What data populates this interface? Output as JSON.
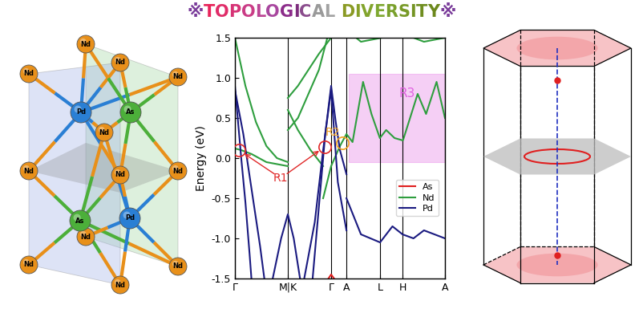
{
  "title": "※TOPOLOGICAL DIVERSITY※",
  "title_colors": [
    "#7a3c9a",
    "#e8245a",
    "#e02c68",
    "#d63476",
    "#ca3c86",
    "#bc4494",
    "#a8469e",
    "#8c2c8a",
    "#7e2e7e",
    "#8a4c8c",
    "#9a9a9a",
    "#a2a2a2",
    "#ffffff",
    "#8a9a24",
    "#86a028",
    "#82a42c",
    "#7ea830",
    "#7aa02c",
    "#789a28",
    "#749424",
    "#708e20",
    "#6c881c",
    "#7a3c9a"
  ],
  "crystal": {
    "elements": {
      "Nd": "#e8901a",
      "Pd": "#2a7fd4",
      "As": "#4caf3a"
    },
    "atoms": [
      "Nd",
      "Nd",
      "Nd",
      "Nd",
      "Nd",
      "Nd",
      "Nd",
      "Nd",
      "Nd",
      "Nd",
      "Nd",
      "Nd",
      "Pd",
      "As",
      "As",
      "Pd"
    ]
  },
  "chart_data": {
    "type": "line",
    "ylabel": "Energy (eV)",
    "xlim": [
      0,
      1.0
    ],
    "ylim": [
      -1.5,
      1.5
    ],
    "xticks": [
      {
        "value": 0,
        "label": "Γ"
      },
      {
        "value": 0.252,
        "label": "M|K"
      },
      {
        "value": 0.458,
        "label": "Γ"
      },
      {
        "value": 0.531,
        "label": "A"
      },
      {
        "value": 0.691,
        "label": "L"
      },
      {
        "value": 0.798,
        "label": "H"
      },
      {
        "value": 1.0,
        "label": "A"
      }
    ],
    "yticks": [
      {
        "value": -1.5,
        "label": "-1.5"
      },
      {
        "value": -1.0,
        "label": "-1.0"
      },
      {
        "value": -0.5,
        "label": "-0.5"
      },
      {
        "value": 0.0,
        "label": "0.0"
      },
      {
        "value": 0.5,
        "label": "0.5"
      },
      {
        "value": 1.0,
        "label": "1.0"
      },
      {
        "value": 1.5,
        "label": "1.5"
      }
    ],
    "grid": "x",
    "legend": "lower right",
    "series": [
      {
        "name": "As",
        "color": "#e02020",
        "bands": [
          {
            "x": [
              0.42,
              0.458,
              0.5
            ],
            "values": [
              -1.6,
              -1.45,
              -1.6
            ]
          }
        ]
      },
      {
        "name": "Nd",
        "color": "#2e9e3e",
        "bands": [
          {
            "x": [
              0,
              0.05,
              0.1,
              0.15,
              0.2,
              0.252
            ],
            "values": [
              1.5,
              0.9,
              0.45,
              0.15,
              0.0,
              -0.05
            ]
          },
          {
            "x": [
              0,
              0.03,
              0.08,
              0.15,
              0.252
            ],
            "values": [
              0.12,
              0.1,
              0.05,
              -0.05,
              -0.1
            ]
          },
          {
            "x": [
              0.252,
              0.3,
              0.35,
              0.4,
              0.458
            ],
            "values": [
              0.75,
              0.9,
              1.1,
              1.3,
              1.5
            ]
          },
          {
            "x": [
              0.252,
              0.3,
              0.35,
              0.4,
              0.44
            ],
            "values": [
              0.35,
              0.5,
              0.8,
              1.1,
              1.5
            ]
          },
          {
            "x": [
              0.252,
              0.3,
              0.36,
              0.42
            ],
            "values": [
              0.6,
              0.35,
              0.1,
              -0.1
            ]
          },
          {
            "x": [
              0.42,
              0.458,
              0.5,
              0.531,
              0.56,
              0.61,
              0.65,
              0.69,
              0.72,
              0.76,
              0.8,
              0.87,
              0.91,
              0.96,
              1.0
            ],
            "values": [
              -0.5,
              -0.1,
              0.15,
              0.3,
              0.2,
              0.95,
              0.55,
              0.25,
              0.35,
              0.25,
              0.22,
              0.8,
              0.55,
              0.95,
              0.5
            ]
          },
          {
            "x": [
              0.531,
              0.6,
              0.7,
              0.8,
              0.9,
              1.0
            ],
            "values": [
              1.6,
              1.45,
              1.5,
              1.55,
              1.45,
              1.5
            ]
          }
        ]
      },
      {
        "name": "Pd",
        "color": "#1a1a80",
        "bands": [
          {
            "x": [
              0,
              0.015,
              0.03,
              0.05,
              0.07,
              0.08
            ],
            "values": [
              0.9,
              0.45,
              0.0,
              -0.55,
              -1.2,
              -1.55
            ]
          },
          {
            "x": [
              0,
              0.04,
              0.08,
              0.12,
              0.14
            ],
            "values": [
              0.85,
              0.3,
              -0.4,
              -1.1,
              -1.5
            ]
          },
          {
            "x": [
              0.37,
              0.4,
              0.43,
              0.458,
              0.48,
              0.5,
              0.531
            ],
            "values": [
              -1.5,
              -0.6,
              0.3,
              0.9,
              0.45,
              0.1,
              -0.2
            ]
          },
          {
            "x": [
              0.33,
              0.38,
              0.42,
              0.458,
              0.49,
              0.531
            ],
            "values": [
              -1.5,
              -0.8,
              0.1,
              0.85,
              -0.3,
              -0.9
            ]
          },
          {
            "x": [
              0.531,
              0.6,
              0.691,
              0.75,
              0.798,
              0.85,
              0.9,
              1.0
            ],
            "values": [
              -0.5,
              -0.95,
              -1.05,
              -0.85,
              -0.95,
              -1.0,
              -0.9,
              -1.0
            ]
          },
          {
            "x": [
              0.18,
              0.22,
              0.252,
              0.28,
              0.31
            ],
            "values": [
              -1.5,
              -1.0,
              -0.7,
              -1.0,
              -1.5
            ]
          }
        ]
      }
    ],
    "annotations": [
      {
        "text": "R1",
        "color": "#e02828",
        "x": 0.218,
        "y": -0.25,
        "arrow": true,
        "targets": [
          [
            0.019,
            0.1
          ],
          [
            0.427,
            0.14
          ]
        ]
      },
      {
        "text": "R2",
        "color": "#f0a020",
        "x": 0.466,
        "y": 0.32,
        "arrow": false,
        "targets": [
          [
            0.511,
            0.19
          ]
        ]
      }
    ],
    "regions": [
      {
        "text": "R3",
        "color": "#e060e0",
        "x": [
          0.542,
          1.0
        ],
        "y": [
          -0.05,
          1.05
        ]
      }
    ]
  }
}
